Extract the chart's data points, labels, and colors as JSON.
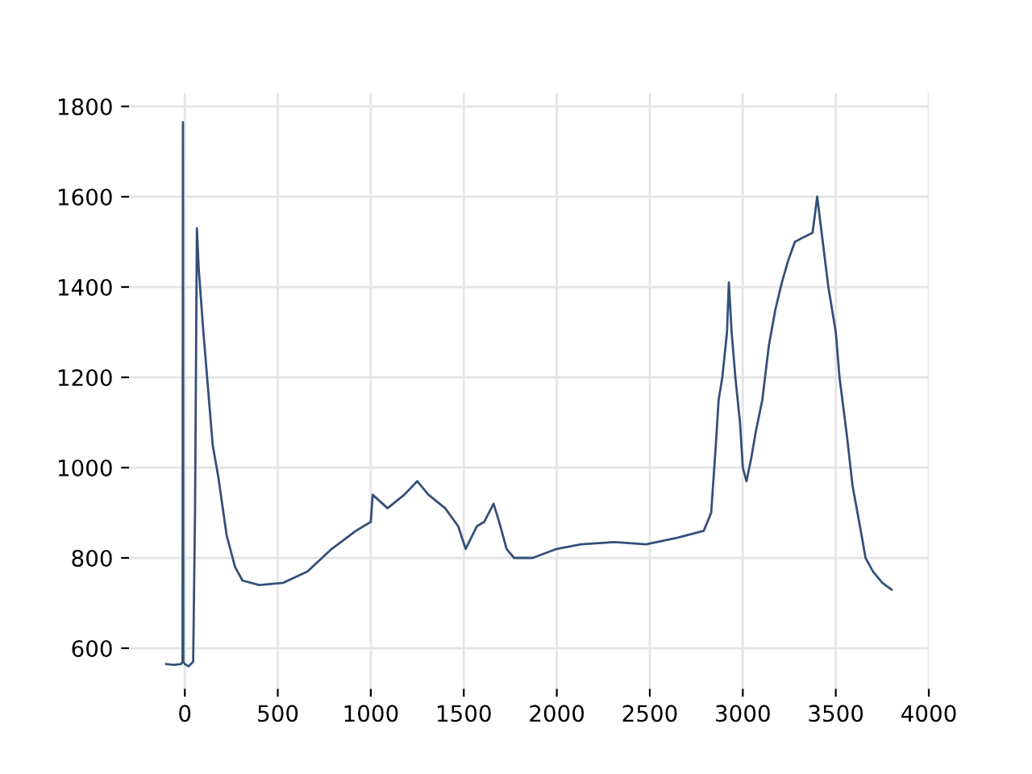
{
  "chart_data": {
    "type": "line",
    "xlim": [
      -300,
      4000
    ],
    "ylim": [
      510,
      1830
    ],
    "xticks": [
      0,
      500,
      1000,
      1500,
      2000,
      2500,
      3000,
      3500,
      4000
    ],
    "yticks": [
      600,
      800,
      1000,
      1200,
      1400,
      1600,
      1800
    ],
    "grid": true,
    "marker": "none",
    "line_style": "solid",
    "series": [
      {
        "color": "#34507a",
        "x": [
          -100,
          -60,
          -20,
          -12,
          -10,
          -8,
          0,
          20,
          45,
          55,
          65,
          75,
          100,
          150,
          180,
          225,
          270,
          310,
          400,
          530,
          660,
          790,
          920,
          1000,
          1010,
          1090,
          1180,
          1250,
          1310,
          1400,
          1470,
          1510,
          1570,
          1610,
          1660,
          1690,
          1730,
          1770,
          1870,
          2000,
          2130,
          2310,
          2480,
          2650,
          2790,
          2830,
          2855,
          2870,
          2890,
          2915,
          2925,
          2940,
          2960,
          2985,
          3000,
          3020,
          3045,
          3070,
          3105,
          3140,
          3175,
          3210,
          3245,
          3280,
          3325,
          3375,
          3400,
          3430,
          3460,
          3500,
          3520,
          3560,
          3590,
          3630,
          3660,
          3700,
          3750,
          3800
        ],
        "values": [
          565,
          563,
          565,
          570,
          1765,
          570,
          565,
          560,
          570,
          900,
          1530,
          1440,
          1300,
          1050,
          980,
          850,
          780,
          750,
          740,
          745,
          770,
          820,
          860,
          880,
          940,
          910,
          940,
          970,
          940,
          910,
          870,
          820,
          870,
          880,
          920,
          880,
          820,
          800,
          800,
          820,
          830,
          835,
          830,
          845,
          860,
          900,
          1050,
          1150,
          1200,
          1300,
          1410,
          1300,
          1200,
          1100,
          1000,
          970,
          1020,
          1080,
          1150,
          1270,
          1350,
          1410,
          1460,
          1500,
          1510,
          1520,
          1600,
          1500,
          1400,
          1300,
          1200,
          1070,
          960,
          870,
          800,
          770,
          745,
          730
        ]
      }
    ]
  }
}
